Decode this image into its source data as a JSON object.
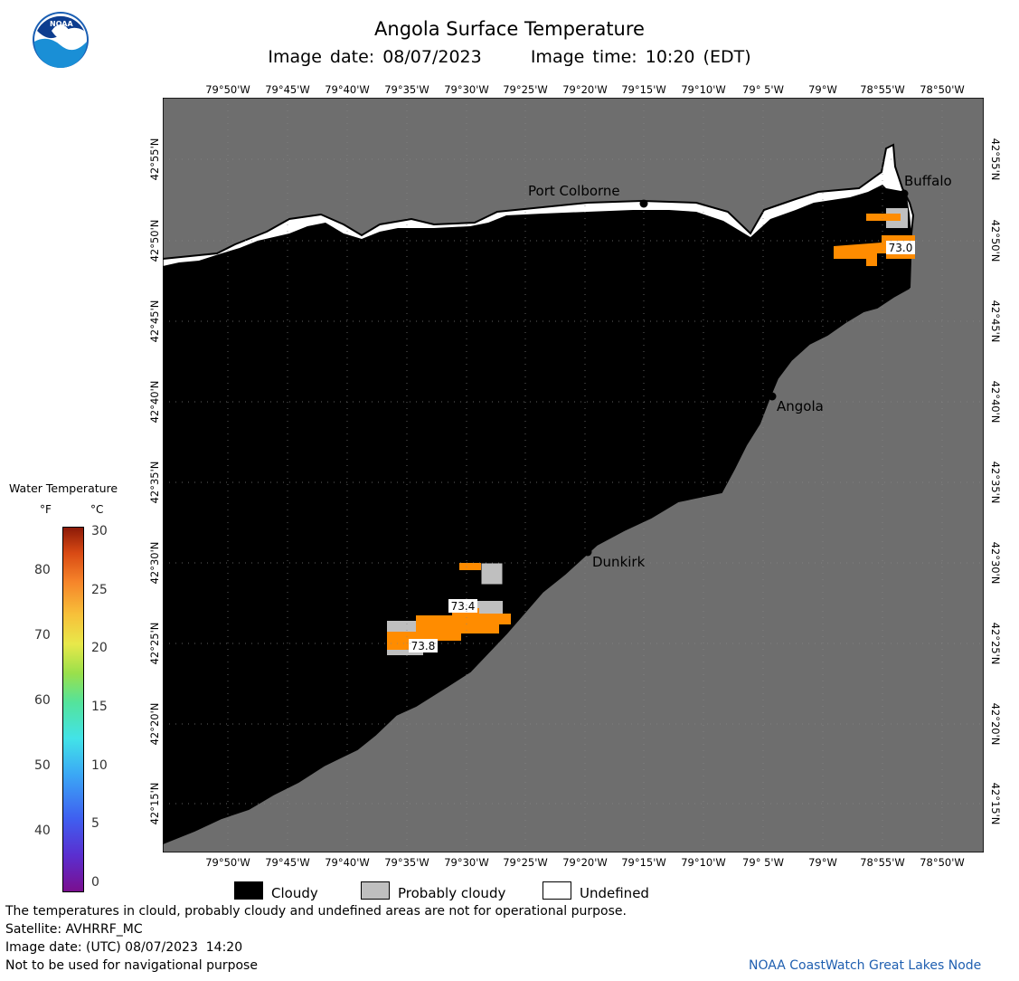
{
  "header": {
    "title": "Angola Surface Temperature",
    "image_date": "Image date: 08/07/2023",
    "image_time": "Image time: 10:20 (EDT)"
  },
  "logo": {
    "text": "NOAA"
  },
  "map": {
    "lon_labels": [
      "79°50'W",
      "79°45'W",
      "79°40'W",
      "79°35'W",
      "79°30'W",
      "79°25'W",
      "79°20'W",
      "79°15'W",
      "79°10'W",
      "79° 5'W",
      "79°W",
      "78°55'W",
      "78°50'W"
    ],
    "lat_labels": [
      "42°55'N",
      "42°50'N",
      "42°45'N",
      "42°40'N",
      "42°35'N",
      "42°30'N",
      "42°25'N",
      "42°20'N",
      "42°15'N"
    ],
    "places": [
      {
        "name": "Port Colborne"
      },
      {
        "name": "Buffalo"
      },
      {
        "name": "Angola"
      },
      {
        "name": "Dunkirk"
      }
    ],
    "temps": [
      "73.0",
      "73.4",
      "73.8"
    ],
    "colors": {
      "land": "#6e6e6e",
      "cloudy": "#000000",
      "probably_cloudy": "#bfbfbf",
      "undefined": "#ffffff",
      "water_warm": "#ff8c00"
    }
  },
  "legend": {
    "title": "Water Temperature",
    "unit_f": "°F",
    "unit_c": "°C",
    "f_ticks": [
      "80",
      "70",
      "60",
      "50",
      "40"
    ],
    "c_ticks": [
      "30",
      "25",
      "20",
      "15",
      "10",
      "5",
      "0"
    ]
  },
  "key": {
    "cloudy": "Cloudy",
    "probably_cloudy": "Probably cloudy",
    "undefined": "Undefined"
  },
  "footer": {
    "note": "The temperatures in clould, probably cloudy and undefined areas are not for operational purpose.",
    "satellite": "Satellite: AVHRRF_MC",
    "utc_date": "Image date: (UTC) 08/07/2023  14:20",
    "nav": "Not to be used for navigational purpose",
    "credit": "NOAA CoastWatch Great Lakes Node"
  }
}
